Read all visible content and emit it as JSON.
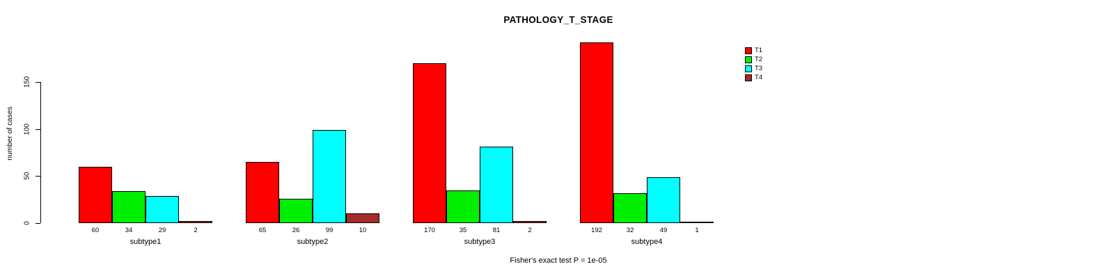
{
  "title": "PATHOLOGY_T_STAGE",
  "caption": "Fisher's exact test P = 1e-05",
  "chart_data": {
    "type": "bar",
    "title": "PATHOLOGY_T_STAGE",
    "xlabel": "",
    "ylabel": "number of cases",
    "categories": [
      "subtype1",
      "subtype2",
      "subtype3",
      "subtype4"
    ],
    "series": [
      {
        "name": "T1",
        "color": "#ff0000",
        "values": [
          60,
          65,
          170,
          192
        ]
      },
      {
        "name": "T2",
        "color": "#00ee00",
        "values": [
          34,
          26,
          35,
          32
        ]
      },
      {
        "name": "T3",
        "color": "#00ffff",
        "values": [
          29,
          99,
          81,
          49
        ]
      },
      {
        "name": "T4",
        "color": "#a52a2a",
        "values": [
          2,
          10,
          2,
          1
        ]
      }
    ],
    "yticks": [
      0,
      50,
      100,
      150
    ],
    "ylim": [
      0,
      195
    ],
    "grid": false,
    "legend_position": "top-right",
    "bar_value_labels_shown": true,
    "annotation": "Fisher's exact test P = 1e-05"
  }
}
